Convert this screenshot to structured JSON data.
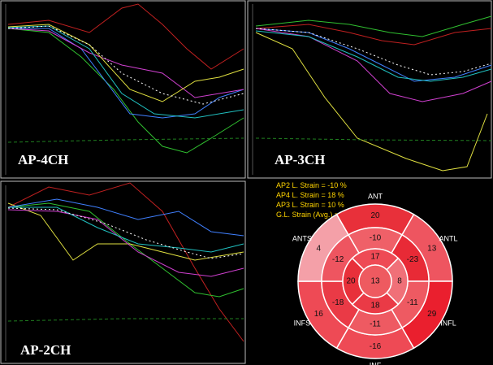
{
  "panels": [
    {
      "label": "AP-4CH"
    },
    {
      "label": "AP-3CH"
    },
    {
      "label": "AP-2CH"
    }
  ],
  "bullseye": {
    "legend": [
      "AP2 L. Strain = -10 %",
      "AP4 L. Strain = 18 %",
      "AP3 L. Strain = 10 %",
      "G.L. Strain (Avg.) = -12 %"
    ],
    "walls": [
      "ANT",
      "ANTL",
      "INFL",
      "INF",
      "INFS",
      "ANTS"
    ],
    "rings": [
      {
        "values": [
          "20",
          "13",
          "29",
          "-16",
          "16",
          "4"
        ],
        "colors": [
          "#e8303a",
          "#ee5560",
          "#ea1f2e",
          "#ee4a55",
          "#ee4a55",
          "#f4a0a8"
        ]
      },
      {
        "values": [
          "-10",
          "-23",
          "-11",
          "-11",
          "-18",
          "-12"
        ],
        "colors": [
          "#ef6068",
          "#e82a36",
          "#ee5a62",
          "#ee5a62",
          "#ea3a46",
          "#ee5560"
        ]
      },
      {
        "values": [
          "17",
          "8",
          "18",
          "20"
        ],
        "colors": [
          "#ee4a55",
          "#f07078",
          "#ea3a46",
          "#e8303a"
        ]
      },
      {
        "values": [
          "13"
        ],
        "colors": [
          "#ee5a60"
        ]
      }
    ]
  }
}
